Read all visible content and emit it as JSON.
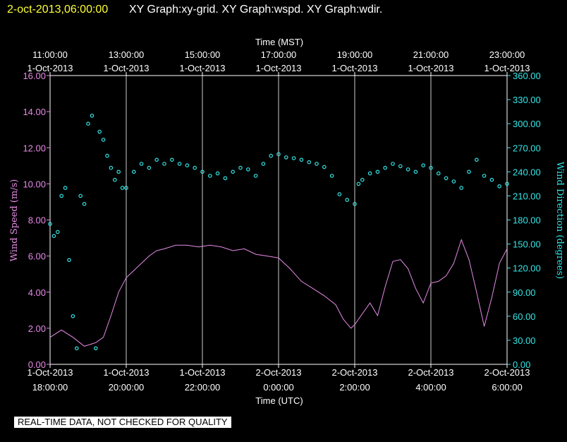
{
  "header": {
    "timestamp": "2-oct-2013,06:00:00",
    "graph_titles": "XY Graph:xy-grid.  XY Graph:wspd.  XY Graph:wdir."
  },
  "footer": {
    "notice": "REAL-TIME DATA, NOT CHECKED FOR QUALITY"
  },
  "colors": {
    "background": "#000000",
    "timestamp": "#ffff33",
    "wind_speed": "#e68ae6",
    "wind_direction": "#33e6e6",
    "grid": "#ffffff"
  },
  "chart_data": {
    "type": "line",
    "top_axis": {
      "label": "Time (MST)",
      "ticks": [
        {
          "hours": 0,
          "time": "11:00:00",
          "date": "1-Oct-2013"
        },
        {
          "hours": 2,
          "time": "13:00:00",
          "date": "1-Oct-2013"
        },
        {
          "hours": 4,
          "time": "15:00:00",
          "date": "1-Oct-2013"
        },
        {
          "hours": 6,
          "time": "17:00:00",
          "date": "1-Oct-2013"
        },
        {
          "hours": 8,
          "time": "19:00:00",
          "date": "1-Oct-2013"
        },
        {
          "hours": 10,
          "time": "21:00:00",
          "date": "1-Oct-2013"
        },
        {
          "hours": 12,
          "time": "23:00:00",
          "date": "1-Oct-2013"
        }
      ]
    },
    "bottom_axis": {
      "label": "Time (UTC)",
      "range_hours": [
        0,
        12
      ],
      "ticks": [
        {
          "hours": 0,
          "date": "1-Oct-2013",
          "time": "18:00:00"
        },
        {
          "hours": 2,
          "date": "1-Oct-2013",
          "time": "20:00:00"
        },
        {
          "hours": 4,
          "date": "1-Oct-2013",
          "time": "22:00:00"
        },
        {
          "hours": 6,
          "date": "2-Oct-2013",
          "time": "0:00:00"
        },
        {
          "hours": 8,
          "date": "2-Oct-2013",
          "time": "2:00:00"
        },
        {
          "hours": 10,
          "date": "2-Oct-2013",
          "time": "4:00:00"
        },
        {
          "hours": 12,
          "date": "2-Oct-2013",
          "time": "6:00:00"
        }
      ]
    },
    "left_axis": {
      "label": "Wind Speed (m/s)",
      "ylim": [
        0,
        16
      ],
      "ticks": [
        "0.00",
        "2.00",
        "4.00",
        "6.00",
        "8.00",
        "10.00",
        "12.00",
        "14.00",
        "16.00"
      ]
    },
    "right_axis": {
      "label": "Wind Direction (degrees)",
      "ylim": [
        0,
        360
      ],
      "ticks": [
        "0.00",
        "30.00",
        "60.00",
        "90.00",
        "120.00",
        "150.00",
        "180.00",
        "210.00",
        "240.00",
        "270.00",
        "300.00",
        "330.00",
        "360.00"
      ]
    },
    "grid": "vertical lines at each time tick",
    "series": [
      {
        "kind": "line",
        "axis": "left",
        "x_hours": [
          0,
          0.3,
          0.6,
          0.9,
          1.2,
          1.4,
          1.6,
          1.8,
          2.0,
          2.2,
          2.4,
          2.6,
          2.8,
          3.0,
          3.3,
          3.6,
          3.9,
          4.2,
          4.5,
          4.8,
          5.1,
          5.4,
          5.7,
          6.0,
          6.3,
          6.6,
          6.9,
          7.2,
          7.5,
          7.7,
          7.9,
          8.0,
          8.2,
          8.4,
          8.6,
          8.8,
          9.0,
          9.2,
          9.4,
          9.6,
          9.8,
          10.0,
          10.2,
          10.4,
          10.6,
          10.8,
          11.0,
          11.2,
          11.4,
          11.6,
          11.8,
          12.0
        ],
        "y": [
          1.5,
          1.9,
          1.5,
          1.0,
          1.2,
          1.5,
          2.7,
          4.0,
          4.8,
          5.2,
          5.6,
          6.0,
          6.3,
          6.4,
          6.6,
          6.6,
          6.5,
          6.6,
          6.5,
          6.3,
          6.4,
          6.1,
          6.0,
          5.9,
          5.3,
          4.6,
          4.2,
          3.8,
          3.3,
          2.5,
          2.0,
          2.2,
          2.8,
          3.4,
          2.7,
          4.3,
          5.7,
          5.8,
          5.3,
          4.2,
          3.4,
          4.5,
          4.6,
          4.9,
          5.6,
          6.9,
          5.8,
          4.0,
          2.1,
          3.7,
          5.6,
          6.4
        ]
      },
      {
        "kind": "scatter",
        "axis": "right",
        "x_hours": [
          0,
          0.1,
          0.2,
          0.3,
          0.4,
          0.5,
          0.6,
          0.7,
          0.8,
          0.9,
          1.0,
          1.1,
          1.2,
          1.3,
          1.4,
          1.5,
          1.6,
          1.7,
          1.8,
          1.9,
          2.0,
          2.2,
          2.4,
          2.6,
          2.8,
          3.0,
          3.2,
          3.4,
          3.6,
          3.8,
          4.0,
          4.2,
          4.4,
          4.6,
          4.8,
          5.0,
          5.2,
          5.4,
          5.6,
          5.8,
          6.0,
          6.2,
          6.4,
          6.6,
          6.8,
          7.0,
          7.2,
          7.4,
          7.6,
          7.8,
          8.0,
          8.1,
          8.2,
          8.4,
          8.6,
          8.8,
          9.0,
          9.2,
          9.4,
          9.6,
          9.8,
          10.0,
          10.2,
          10.4,
          10.6,
          10.8,
          11.0,
          11.2,
          11.4,
          11.6,
          11.8,
          12.0
        ],
        "y": [
          175,
          160,
          165,
          210,
          220,
          130,
          60,
          20,
          210,
          200,
          300,
          310,
          20,
          290,
          280,
          260,
          245,
          230,
          240,
          220,
          220,
          240,
          250,
          245,
          255,
          250,
          255,
          250,
          248,
          245,
          240,
          235,
          238,
          232,
          240,
          245,
          243,
          235,
          250,
          260,
          262,
          258,
          257,
          255,
          252,
          250,
          246,
          235,
          212,
          205,
          200,
          225,
          230,
          238,
          240,
          245,
          250,
          247,
          243,
          240,
          248,
          245,
          238,
          232,
          228,
          220,
          240,
          255,
          235,
          230,
          222,
          225
        ]
      }
    ]
  }
}
